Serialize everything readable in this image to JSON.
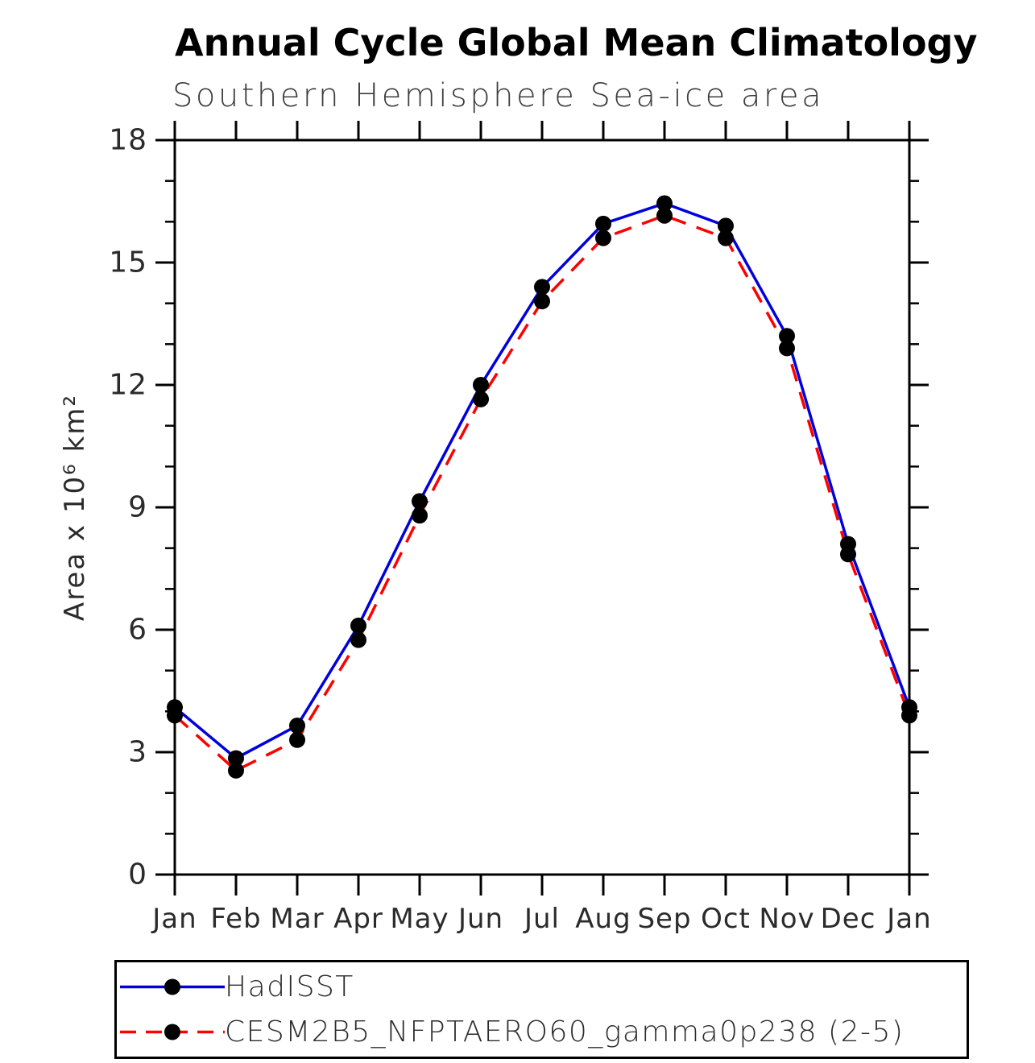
{
  "window": {
    "background_color": "#ffffff"
  },
  "chart_data": {
    "type": "line",
    "title": "Annual Cycle Global Mean Climatology",
    "subtitle": "Southern Hemisphere Sea-ice area",
    "ylabel": "Area x 10⁶ km²",
    "xlabel": "",
    "categories": [
      "Jan",
      "Feb",
      "Mar",
      "Apr",
      "May",
      "Jun",
      "Jul",
      "Aug",
      "Sep",
      "Oct",
      "Nov",
      "Dec",
      "Jan"
    ],
    "series": [
      {
        "name": "HadISST",
        "color": "#0000dd",
        "line_style": "solid",
        "marker": "filled-circle",
        "marker_color": "#000000",
        "values": [
          4.1,
          2.85,
          3.65,
          6.1,
          9.15,
          12.0,
          14.4,
          15.95,
          16.45,
          15.9,
          13.2,
          8.1,
          4.1
        ]
      },
      {
        "name": "CESM2B5_NFPTAERO60_gamma0p238 (2-5)",
        "color": "#ff0000",
        "line_style": "dashed",
        "marker": "filled-circle",
        "marker_color": "#000000",
        "values": [
          3.9,
          2.55,
          3.3,
          5.75,
          8.8,
          11.65,
          14.05,
          15.6,
          16.15,
          15.6,
          12.9,
          7.85,
          3.9
        ]
      }
    ],
    "ylim": [
      0,
      18
    ],
    "yticks_major": [
      0,
      3,
      6,
      9,
      12,
      15,
      18
    ],
    "ytick_minor_step": 1,
    "grid": "off",
    "frame": "box-with-outward-ticks",
    "legend_position": "bottom-left-box",
    "axis_color": "#000000"
  }
}
